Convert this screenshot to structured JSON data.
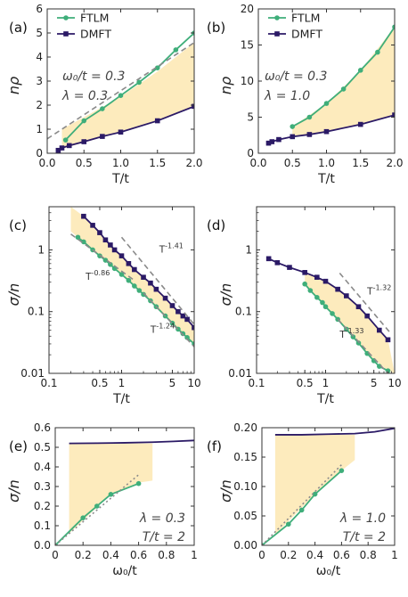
{
  "chart_data": [
    {
      "panel": "(a)",
      "type": "line",
      "xlabel": "T/t",
      "ylabel": "nρ",
      "xlim": [
        0,
        2
      ],
      "ylim": [
        0,
        6
      ],
      "xticks": [
        0.0,
        0.5,
        1.0,
        1.5,
        2.0
      ],
      "xtick_labels": [
        "0.0",
        "0.5",
        "1.0",
        "1.5",
        "2.0"
      ],
      "yticks": [
        0,
        1,
        2,
        3,
        4,
        5,
        6
      ],
      "ytick_labels": [
        "0",
        "1",
        "2",
        "3",
        "4",
        "5",
        "6"
      ],
      "legend": [
        "FTLM",
        "DMFT"
      ],
      "legend_placement": "top-left",
      "annotations": [
        "ω₀/t = 0.3",
        "λ = 0.3"
      ],
      "series": [
        {
          "name": "FTLM",
          "color": "#3fae7a",
          "marker": "circle",
          "x": [
            0.25,
            0.5,
            0.75,
            1.0,
            1.25,
            1.5,
            1.75,
            2.0
          ],
          "y": [
            0.55,
            1.35,
            1.85,
            2.4,
            2.95,
            3.55,
            4.3,
            5.0
          ]
        },
        {
          "name": "DMFT",
          "color": "#2b1a66",
          "marker": "square",
          "x": [
            0.15,
            0.2,
            0.3,
            0.5,
            0.75,
            1.0,
            1.5,
            2.0
          ],
          "y": [
            0.12,
            0.22,
            0.32,
            0.48,
            0.7,
            0.88,
            1.35,
            1.95
          ]
        },
        {
          "name": "",
          "style": "dashed",
          "color": "#8a8a8a",
          "x": [
            0.0,
            2.0
          ],
          "y": [
            0.6,
            4.6
          ]
        }
      ],
      "band": {
        "x": [
          0.2,
          0.5,
          1.0,
          1.5,
          2.0
        ],
        "upper": [
          1.0,
          1.5,
          2.35,
          3.4,
          4.6
        ],
        "lower": [
          0.18,
          0.45,
          0.88,
          1.35,
          1.95
        ]
      }
    },
    {
      "panel": "(b)",
      "type": "line",
      "xlabel": "T/t",
      "ylabel": "nρ",
      "xlim": [
        0,
        2
      ],
      "ylim": [
        0,
        20
      ],
      "xticks": [
        0.0,
        0.5,
        1.0,
        1.5,
        2.0
      ],
      "xtick_labels": [
        "0.0",
        "0.5",
        "1.0",
        "1.5",
        "2.0"
      ],
      "yticks": [
        0,
        5,
        10,
        15,
        20
      ],
      "ytick_labels": [
        "0",
        "5",
        "10",
        "15",
        "20"
      ],
      "legend": [
        "FTLM",
        "DMFT"
      ],
      "legend_placement": "top-left",
      "annotations": [
        "ω₀/t = 0.3",
        "λ = 1.0"
      ],
      "series": [
        {
          "name": "FTLM",
          "color": "#3fae7a",
          "marker": "circle",
          "x": [
            0.5,
            0.75,
            1.0,
            1.25,
            1.5,
            1.75,
            2.0
          ],
          "y": [
            3.7,
            5.0,
            6.9,
            8.9,
            11.5,
            14.0,
            17.5
          ]
        },
        {
          "name": "DMFT",
          "color": "#2b1a66",
          "marker": "square",
          "x": [
            0.15,
            0.2,
            0.3,
            0.5,
            0.75,
            1.0,
            1.5,
            2.0
          ],
          "y": [
            1.4,
            1.6,
            1.9,
            2.3,
            2.6,
            3.0,
            4.0,
            5.3
          ]
        }
      ],
      "band": {
        "x": [
          0.5,
          1.0,
          1.5,
          2.0
        ],
        "upper": [
          3.7,
          6.9,
          11.5,
          17.5
        ],
        "lower": [
          2.3,
          3.0,
          4.0,
          5.3
        ]
      }
    },
    {
      "panel": "(c)",
      "type": "line",
      "log_x": true,
      "log_y": true,
      "xlabel": "T/t",
      "ylabel": "σ/n",
      "xlim": [
        0.1,
        10
      ],
      "ylim": [
        0.01,
        5
      ],
      "xticks": [
        0.1,
        0.5,
        1,
        5,
        10
      ],
      "xtick_labels": [
        "0.1",
        "0.5",
        "1",
        "5",
        "10"
      ],
      "yticks": [
        0.01,
        0.1,
        1
      ],
      "ytick_labels": [
        "0.01",
        "0.1",
        "1"
      ],
      "series": [
        {
          "name": "DMFT",
          "color": "#2b1a66",
          "marker": "square",
          "x": [
            0.3,
            0.4,
            0.5,
            0.6,
            0.7,
            0.8,
            1.0,
            1.25,
            1.5,
            2.0,
            2.5,
            3.0,
            4.0,
            5.0,
            6.0,
            7.0,
            8.0,
            10.0
          ],
          "y": [
            3.5,
            2.5,
            1.9,
            1.45,
            1.2,
            1.0,
            0.8,
            0.6,
            0.48,
            0.36,
            0.29,
            0.23,
            0.165,
            0.125,
            0.1,
            0.085,
            0.075,
            0.055
          ]
        },
        {
          "name": "FTLM",
          "color": "#3fae7a",
          "marker": "circle",
          "x": [
            0.25,
            0.3,
            0.4,
            0.5,
            0.6,
            0.7,
            0.8,
            1.0,
            1.25,
            1.5,
            1.75,
            2.0,
            2.5,
            3.0,
            4.0,
            5.0,
            6.0,
            7.0,
            8.0,
            10.0
          ],
          "y": [
            1.6,
            1.35,
            1.0,
            0.8,
            0.68,
            0.58,
            0.5,
            0.4,
            0.32,
            0.26,
            0.22,
            0.19,
            0.15,
            0.12,
            0.085,
            0.065,
            0.052,
            0.044,
            0.038,
            0.03
          ]
        },
        {
          "name": "T^-1.41",
          "style": "dashed",
          "color": "#8a8a8a",
          "x": [
            1.0,
            10.0
          ],
          "y": [
            1.6,
            0.062
          ]
        },
        {
          "name": "T^-0.86",
          "style": "dashed",
          "color": "#8a8a8a",
          "x": [
            0.2,
            1.5
          ],
          "y": [
            1.8,
            0.32
          ]
        },
        {
          "name": "T^-1.24",
          "style": "dashed",
          "color": "#8a8a8a",
          "x": [
            2.0,
            10.0
          ],
          "y": [
            0.2,
            0.027
          ]
        }
      ],
      "band": {
        "x": [
          0.2,
          0.3,
          0.5,
          1.0,
          2.0,
          5.0,
          10.0
        ],
        "upper": [
          5.0,
          3.5,
          1.9,
          0.8,
          0.36,
          0.125,
          0.055
        ],
        "lower": [
          2.0,
          1.35,
          0.8,
          0.4,
          0.19,
          0.065,
          0.03
        ]
      },
      "annotations": [
        {
          "base": "T",
          "exp": "-1.41",
          "x": 3.3,
          "y": 0.9
        },
        {
          "base": "T",
          "exp": "-0.86",
          "x": 0.32,
          "y": 0.33
        },
        {
          "base": "T",
          "exp": "-1.24",
          "x": 2.5,
          "y": 0.045
        }
      ]
    },
    {
      "panel": "(d)",
      "type": "line",
      "log_x": true,
      "log_y": true,
      "xlabel": "T/t",
      "ylabel": "σ/n",
      "xlim": [
        0.1,
        10
      ],
      "ylim": [
        0.01,
        5
      ],
      "xticks": [
        0.1,
        0.5,
        1,
        5,
        10
      ],
      "xtick_labels": [
        "0.1",
        "0.5",
        "1",
        "5",
        "10"
      ],
      "yticks": [
        0.01,
        0.1,
        1
      ],
      "ytick_labels": [
        "0.01",
        "0.1",
        "1"
      ],
      "series": [
        {
          "name": "DMFT",
          "color": "#2b1a66",
          "marker": "square",
          "x": [
            0.15,
            0.2,
            0.3,
            0.5,
            0.75,
            1.0,
            1.5,
            2.0,
            3.0,
            4.0,
            6.0,
            8.0
          ],
          "y": [
            0.72,
            0.62,
            0.52,
            0.43,
            0.36,
            0.31,
            0.23,
            0.18,
            0.12,
            0.085,
            0.05,
            0.035
          ]
        },
        {
          "name": "FTLM",
          "color": "#3fae7a",
          "marker": "circle",
          "x": [
            0.5,
            0.6,
            0.75,
            0.9,
            1.0,
            1.25,
            1.5,
            2.0,
            2.5,
            3.0,
            4.0,
            5.0,
            6.0,
            8.0
          ],
          "y": [
            0.28,
            0.22,
            0.17,
            0.14,
            0.12,
            0.093,
            0.075,
            0.052,
            0.039,
            0.031,
            0.021,
            0.016,
            0.013,
            0.011
          ]
        },
        {
          "name": "T^-1.32",
          "style": "dashed",
          "color": "#8a8a8a",
          "x": [
            1.6,
            9.0
          ],
          "y": [
            0.42,
            0.043
          ]
        },
        {
          "name": "T^-1.33",
          "style": "dashed",
          "color": "#8a8a8a",
          "x": [
            1.5,
            8.0
          ],
          "y": [
            0.075,
            0.01
          ]
        }
      ],
      "band": {
        "x": [
          0.5,
          1.0,
          2.0,
          4.0,
          8.0,
          10.0
        ],
        "upper": [
          0.43,
          0.31,
          0.18,
          0.085,
          0.035,
          0.01
        ],
        "lower": [
          0.28,
          0.12,
          0.052,
          0.021,
          0.011,
          0.01
        ]
      },
      "annotations": [
        {
          "base": "T",
          "exp": "-1.32",
          "x": 4.0,
          "y": 0.19
        },
        {
          "base": "T",
          "exp": "-1.33",
          "x": 1.6,
          "y": 0.038
        }
      ]
    },
    {
      "panel": "(e)",
      "type": "line",
      "xlabel": "ω₀/t",
      "ylabel": "σ/n",
      "xlim": [
        0,
        1
      ],
      "ylim": [
        0,
        0.6
      ],
      "xticks": [
        0,
        0.2,
        0.4,
        0.6,
        0.8,
        1
      ],
      "xtick_labels": [
        "0",
        "0.2",
        "0.4",
        "0.6",
        "0.8",
        "1"
      ],
      "yticks": [
        0,
        0.1,
        0.2,
        0.3,
        0.4,
        0.5,
        0.6
      ],
      "ytick_labels": [
        "0.0",
        "0.1",
        "0.2",
        "0.3",
        "0.4",
        "0.5",
        "0.6"
      ],
      "annotations": [
        "λ = 0.3",
        "T/t = 2"
      ],
      "series": [
        {
          "name": "DMFT",
          "color": "#2b1a66",
          "marker": "none",
          "x": [
            0.1,
            0.3,
            0.5,
            0.7,
            0.85,
            1.0
          ],
          "y": [
            0.52,
            0.521,
            0.523,
            0.526,
            0.53,
            0.535
          ]
        },
        {
          "name": "FTLM",
          "color": "#3fae7a",
          "marker": "circle",
          "x": [
            0.0,
            0.2,
            0.3,
            0.4,
            0.6
          ],
          "y": [
            0.0,
            0.14,
            0.2,
            0.26,
            0.315
          ]
        },
        {
          "name": "",
          "style": "dotted",
          "color": "#8a8a8a",
          "x": [
            0.0,
            0.6
          ],
          "y": [
            0.0,
            0.36
          ]
        }
      ],
      "band": {
        "x": [
          0.1,
          0.4,
          0.6,
          0.7
        ],
        "upper": [
          0.52,
          0.52,
          0.52,
          0.52
        ],
        "lower": [
          0.06,
          0.26,
          0.32,
          0.33
        ]
      }
    },
    {
      "panel": "(f)",
      "type": "line",
      "xlabel": "ω₀/t",
      "ylabel": "σ/n",
      "xlim": [
        0,
        1
      ],
      "ylim": [
        0,
        0.2
      ],
      "xticks": [
        0,
        0.2,
        0.4,
        0.6,
        0.8,
        1
      ],
      "xtick_labels": [
        "0",
        "0.2",
        "0.4",
        "0.6",
        "0.8",
        "1"
      ],
      "yticks": [
        0,
        0.05,
        0.1,
        0.15,
        0.2
      ],
      "ytick_labels": [
        "0.00",
        "0.05",
        "0.10",
        "0.15",
        "0.20"
      ],
      "annotations": [
        "λ = 1.0",
        "T/t = 2"
      ],
      "series": [
        {
          "name": "DMFT",
          "color": "#2b1a66",
          "marker": "none",
          "x": [
            0.1,
            0.3,
            0.5,
            0.7,
            0.85,
            1.0
          ],
          "y": [
            0.188,
            0.188,
            0.189,
            0.19,
            0.193,
            0.199
          ]
        },
        {
          "name": "FTLM",
          "color": "#3fae7a",
          "marker": "circle",
          "x": [
            0.0,
            0.2,
            0.3,
            0.4,
            0.6
          ],
          "y": [
            0.0,
            0.036,
            0.06,
            0.087,
            0.127
          ]
        },
        {
          "name": "",
          "style": "dotted",
          "color": "#8a8a8a",
          "x": [
            0.0,
            0.6
          ],
          "y": [
            0.0,
            0.137
          ]
        }
      ],
      "band": {
        "x": [
          0.1,
          0.4,
          0.6,
          0.7
        ],
        "upper": [
          0.188,
          0.188,
          0.188,
          0.188
        ],
        "lower": [
          0.018,
          0.087,
          0.127,
          0.145
        ]
      }
    }
  ]
}
